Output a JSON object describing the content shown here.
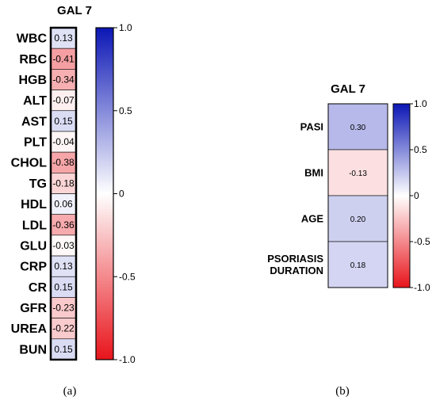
{
  "chart_data": [
    {
      "type": "heatmap",
      "title": "GAL 7",
      "rows": [
        "WBC",
        "RBC",
        "HGB",
        "ALT",
        "AST",
        "PLT",
        "CHOL",
        "TG",
        "HDL",
        "LDL",
        "GLU",
        "CRP",
        "CR",
        "GFR",
        "UREA",
        "BUN"
      ],
      "columns": [
        "GAL 7"
      ],
      "values": [
        0.13,
        -0.41,
        -0.34,
        -0.07,
        0.15,
        -0.04,
        -0.38,
        -0.18,
        0.06,
        -0.36,
        -0.03,
        0.13,
        0.15,
        -0.23,
        -0.22,
        0.15
      ],
      "value_labels": [
        "0.13",
        "-0.41",
        "-0.34",
        "-0.07",
        "0.15",
        "-0.04",
        "-0.38",
        "-0.18",
        "0.06",
        "-0.36",
        "-0.03",
        "0.13",
        "0.15",
        "-0.23",
        "-0.22",
        "0.15"
      ],
      "colorbar": {
        "range": [
          -1.0,
          1.0
        ],
        "ticks": [
          "1.0",
          "0.5",
          "0",
          "-0.5",
          "-1.0"
        ],
        "tick_values": [
          1.0,
          0.5,
          0,
          -0.5,
          -1.0
        ]
      },
      "panel_label": "(a)"
    },
    {
      "type": "heatmap",
      "title": "GAL 7",
      "rows": [
        "PASI",
        "BMI",
        "AGE",
        "PSORIASIS DURATION"
      ],
      "row_label_lines": [
        [
          "PASI"
        ],
        [
          "BMI"
        ],
        [
          "AGE"
        ],
        [
          "PSORIASIS",
          "DURATION"
        ]
      ],
      "columns": [
        "GAL 7"
      ],
      "values": [
        0.3,
        -0.13,
        0.2,
        0.18
      ],
      "value_labels": [
        "0.30",
        "-0.13",
        "0.20",
        "0.18"
      ],
      "colorbar": {
        "range": [
          -1.0,
          1.0
        ],
        "ticks": [
          "1.0",
          "0.5",
          "0",
          "-0.5",
          "-1.0"
        ],
        "tick_values": [
          1.0,
          0.5,
          0,
          -0.5,
          -1.0
        ]
      },
      "panel_label": "(b)"
    }
  ],
  "colors": {
    "positive": "#0b16b5",
    "zero": "#ffffff",
    "negative": "#e8141b"
  }
}
